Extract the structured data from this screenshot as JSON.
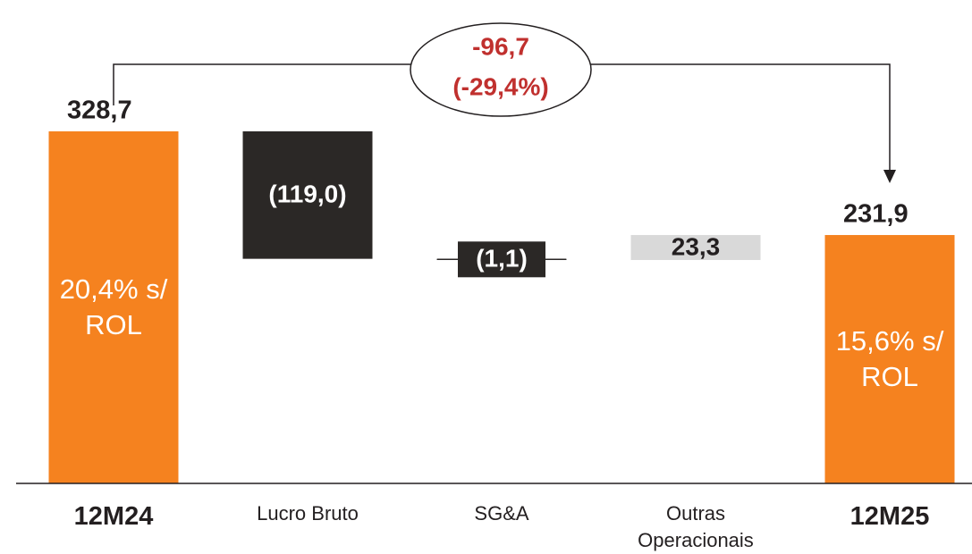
{
  "chart_data": {
    "type": "waterfall",
    "categories": [
      "12M24",
      "Lucro Bruto",
      "SG&A",
      "Outras Operacionais",
      "12M25"
    ],
    "values": [
      328.7,
      -119.0,
      -1.1,
      23.3,
      231.9
    ],
    "value_labels": [
      "328,7",
      "(119,0)",
      "(1,1)",
      "23,3",
      "231,9"
    ],
    "totals": [
      true,
      false,
      false,
      false,
      true
    ],
    "colors": [
      "#f5821f",
      "#2b2826",
      "#2b2826",
      "#d9d9d9",
      "#f5821f"
    ],
    "label_colors": [
      "#231f20",
      "#ffffff",
      "#ffffff",
      "#231f20",
      "#231f20"
    ],
    "inner_labels": [
      "20,4% s/ ROL",
      null,
      null,
      null,
      "15,6% s/ ROL"
    ],
    "annotation": {
      "lines": [
        "-96,7",
        "(-29,4%)"
      ],
      "color": "#c0302e"
    }
  }
}
